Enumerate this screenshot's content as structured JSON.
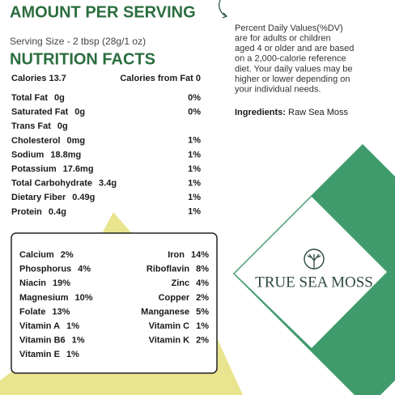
{
  "header": {
    "title": "AMOUNT PER SERVING",
    "serving": "Serving Size - 2  tbsp (28g/1 oz)",
    "subtitle": "NUTRITION FACTS"
  },
  "calories": {
    "left": "Calories 13.7",
    "right": "Calories from Fat 0"
  },
  "nutrients": [
    [
      "Total Fat",
      "0g",
      "0%"
    ],
    [
      "Saturated Fat",
      "0g",
      "0%"
    ],
    [
      "Trans Fat",
      "0g",
      null
    ],
    [
      "Cholesterol",
      "0mg",
      "1%"
    ],
    [
      "Sodium",
      "18.8mg",
      "1%"
    ],
    [
      "Potassium",
      "17.6mg",
      "1%"
    ],
    [
      "Total Carbohydrate",
      "3.4g",
      "1%"
    ],
    [
      "Dietary Fiber",
      "0.49g",
      "1%"
    ],
    [
      "Protein",
      "0.4g",
      "1%"
    ]
  ],
  "minerals": [
    [
      [
        "Calcium",
        "2%"
      ],
      [
        "Iron",
        "14%"
      ]
    ],
    [
      [
        "Phosphorus",
        "4%"
      ],
      [
        "Riboflavin",
        "8%"
      ]
    ],
    [
      [
        "Niacin",
        "19%"
      ],
      [
        "Zinc",
        "4%"
      ]
    ],
    [
      [
        "Magnesium",
        "10%"
      ],
      [
        "Copper",
        "2%"
      ]
    ],
    [
      [
        "Folate",
        "13%"
      ],
      [
        "Manganese",
        "5%"
      ]
    ],
    [
      [
        "Vitamin A",
        "1%"
      ],
      [
        "Vitamin C",
        "1%"
      ]
    ],
    [
      [
        "Vitamin B6",
        "1%"
      ],
      [
        "Vitamin K",
        "2%"
      ]
    ],
    [
      [
        "Vitamin E",
        "1%"
      ],
      null
    ]
  ],
  "note": [
    "Percent Daily Values(%DV)",
    "are for adults or children",
    "aged 4 or older and are based",
    "on a 2,000-calorie reference",
    "diet. Your daily values may be",
    "higher or lower depending on",
    "your individual needs."
  ],
  "ingredients": {
    "label": "Ingredients:",
    "value": "Raw Sea Moss"
  },
  "brand": "TRUE SEA MOSS"
}
